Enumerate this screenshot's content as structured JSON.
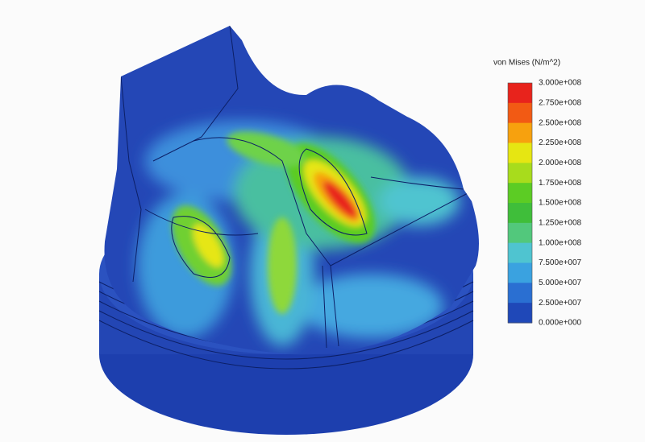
{
  "legend": {
    "title": "von Mises (N/m^2)",
    "labels": [
      "3.000e+008",
      "2.750e+008",
      "2.500e+008",
      "2.250e+008",
      "2.000e+008",
      "1.750e+008",
      "1.500e+008",
      "1.250e+008",
      "1.000e+008",
      "7.500e+007",
      "5.000e+007",
      "2.500e+007",
      "0.000e+000"
    ],
    "colors": [
      "#e8231c",
      "#f25a14",
      "#f7a10e",
      "#e6e612",
      "#a8dc1c",
      "#5ccc24",
      "#3fbe3a",
      "#52c87c",
      "#4fc4d0",
      "#3aa2e0",
      "#2a6fd2",
      "#1f48b8"
    ]
  }
}
